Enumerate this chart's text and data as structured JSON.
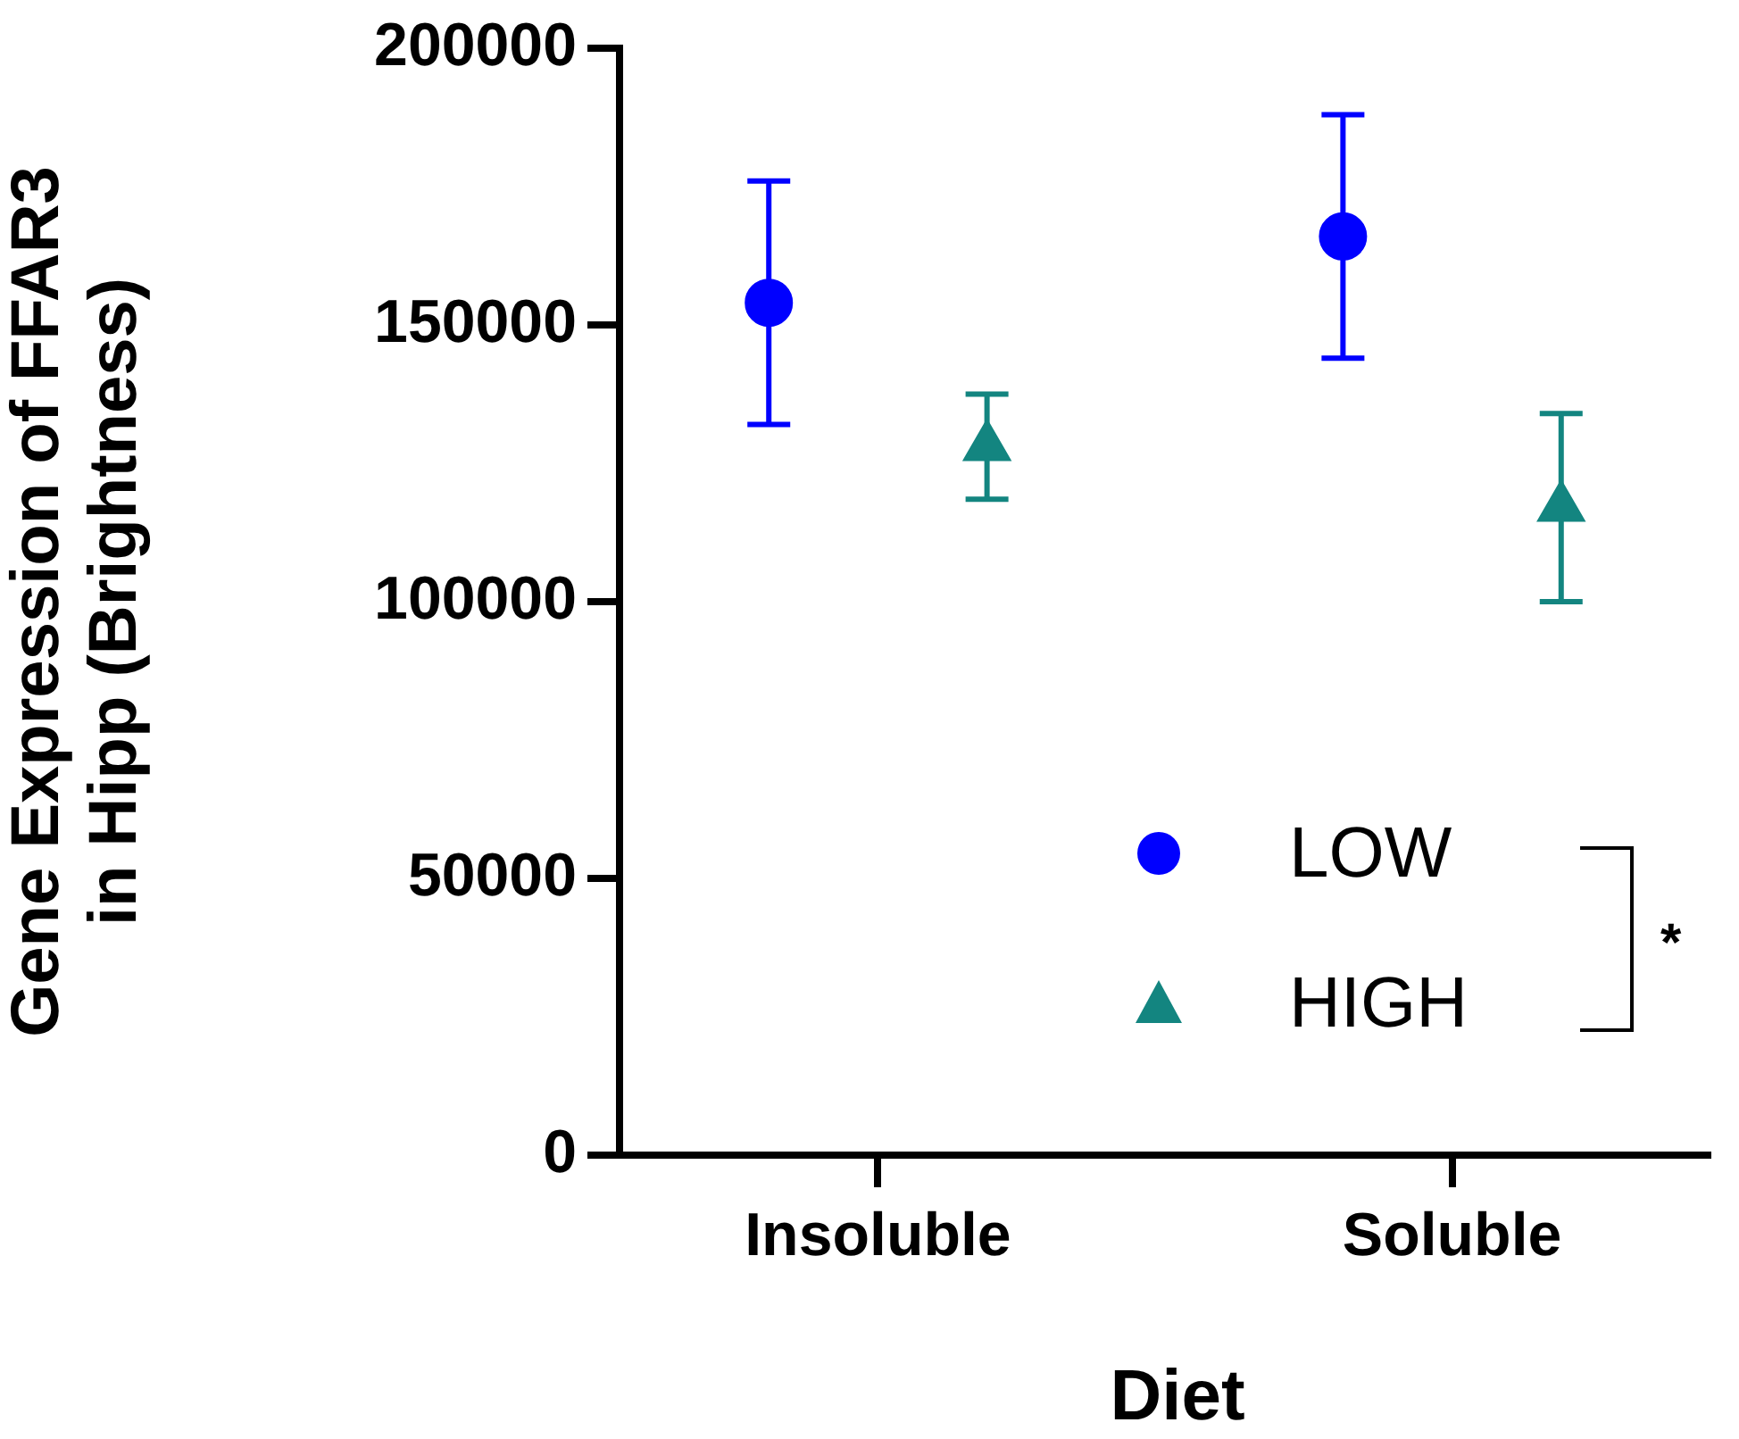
{
  "chart_data": {
    "type": "scatter",
    "xlabel": "Diet",
    "ylabel": "Gene Expression of FFAR3 in Hipp (Brightness)",
    "categories": [
      "Insoluble",
      "Soluble"
    ],
    "series": [
      {
        "name": "LOW",
        "color": "#0000ff",
        "marker": "circle",
        "values": [
          154000,
          166000
        ],
        "errors": [
          22000,
          22000
        ]
      },
      {
        "name": "HIGH",
        "color": "#138580",
        "marker": "triangle",
        "values": [
          128000,
          117000
        ],
        "errors": [
          9500,
          17000
        ]
      }
    ],
    "ylim": [
      0,
      200000
    ],
    "yticks": [
      0,
      50000,
      100000,
      150000,
      200000
    ],
    "grid": false,
    "legend": "bottom right",
    "annotations": [
      "*"
    ]
  }
}
